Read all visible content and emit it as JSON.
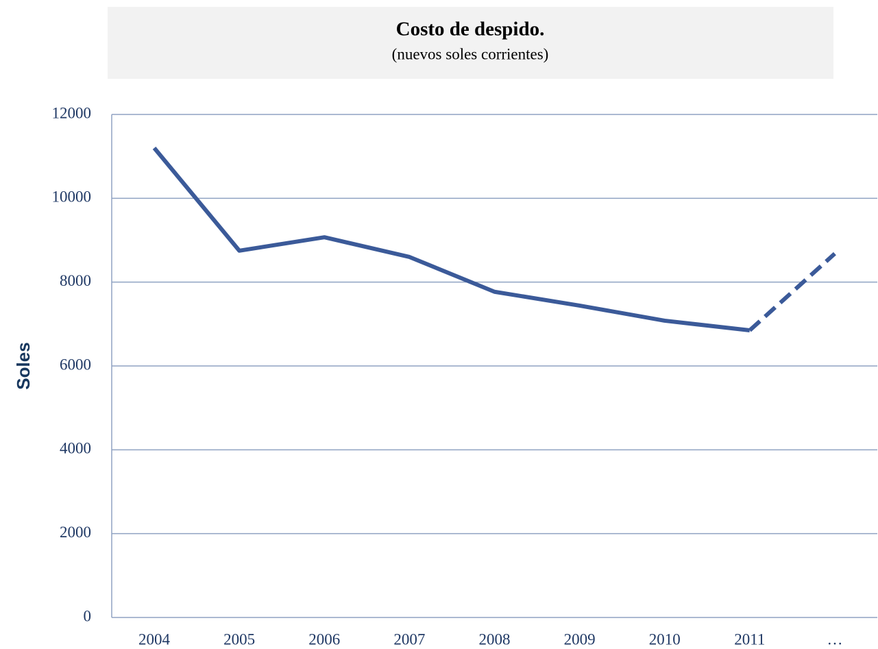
{
  "chart_data": {
    "type": "line",
    "title": "Costo de despido.",
    "subtitle": "(nuevos soles corrientes)",
    "y_label": "Soles",
    "categories": [
      "2004",
      "2005",
      "2006",
      "2007",
      "2008",
      "2009",
      "2010",
      "2011",
      "…"
    ],
    "values": [
      11200,
      8750,
      9070,
      8600,
      7770,
      7440,
      7080,
      6850,
      8680
    ],
    "color": "#3b5a99",
    "dashed_last_segment": true,
    "ylim": [
      0,
      12000
    ],
    "yticks": [
      0,
      2000,
      4000,
      6000,
      8000,
      10000,
      12000
    ],
    "grid": true
  }
}
